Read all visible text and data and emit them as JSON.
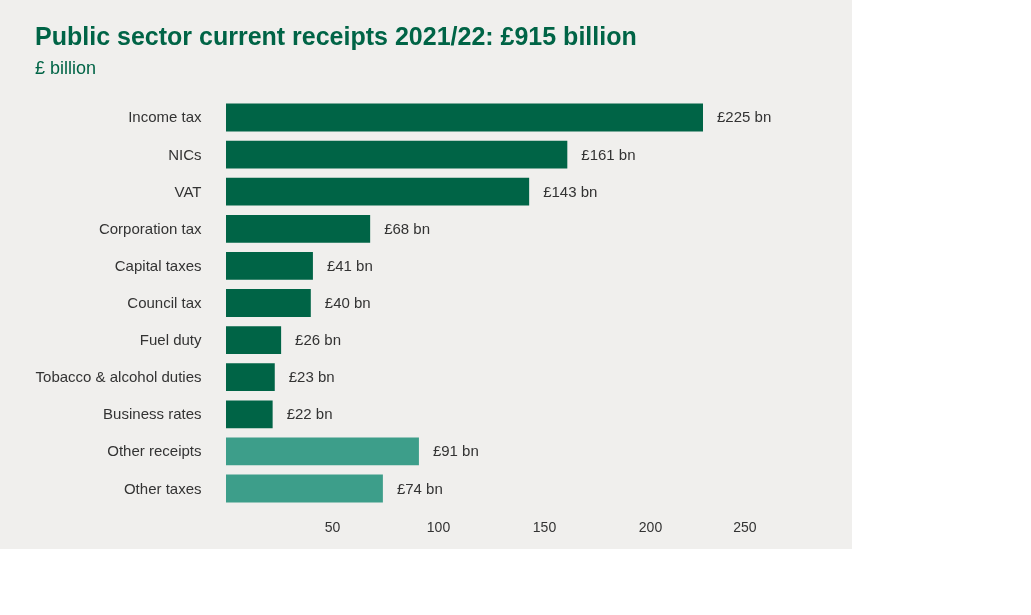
{
  "chart_data": {
    "type": "bar",
    "orientation": "horizontal",
    "title": "Public sector current receipts 2021/22: £915 billion",
    "subtitle": "£ billion",
    "categories": [
      "Income tax",
      "NICs",
      "VAT",
      "Corporation tax",
      "Capital taxes",
      "Council tax",
      "Fuel duty",
      "Tobacco & alcohol duties",
      "Business rates",
      "Other receipts",
      "Other taxes"
    ],
    "values": [
      225,
      161,
      143,
      68,
      41,
      40,
      26,
      23,
      22,
      91,
      74
    ],
    "colors": [
      "#006446",
      "#006446",
      "#006446",
      "#006446",
      "#006446",
      "#006446",
      "#006446",
      "#006446",
      "#006446",
      "#3d9e8a",
      "#3d9e8a"
    ],
    "value_labels": [
      "£225 bn",
      "£161 bn",
      "£143 bn",
      "£68 bn",
      "£41 bn",
      "£40 bn",
      "£26 bn",
      "£23 bn",
      "£22 bn",
      "£91 bn",
      "£74 bn"
    ],
    "xlim": [
      0,
      250
    ],
    "xticks": [
      50,
      100,
      150,
      200,
      250
    ],
    "grid": false
  }
}
